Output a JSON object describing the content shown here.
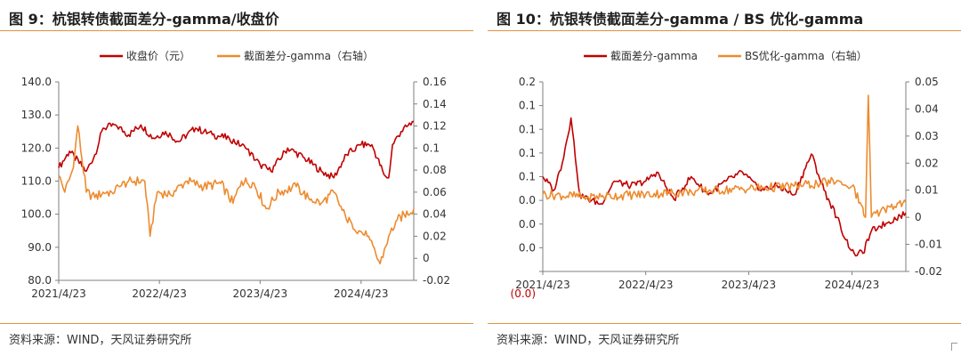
{
  "colors": {
    "series_red": "#c00000",
    "series_orange": "#ed8b2f",
    "rule": "#e0933b",
    "axis": "#7f7f7f"
  },
  "left": {
    "title": "图 9：杭银转债截面差分-gamma/收盘价",
    "source": "资料来源：WIND，天风证券研究所"
  },
  "right": {
    "title": "图 10：杭银转债截面差分-gamma / BS 优化-gamma",
    "source": "资料来源：WIND，天风证券研究所"
  },
  "chart_data": [
    {
      "type": "line",
      "title": "图 9：杭银转债截面差分-gamma/收盘价",
      "x_ticks": [
        "2021/4/23",
        "2022/4/23",
        "2023/4/23",
        "2024/4/23"
      ],
      "x_range": [
        "2021/4/23",
        "2024/10/31"
      ],
      "y_left": {
        "ticks": [
          "80.0",
          "90.0",
          "100.0",
          "110.0",
          "120.0",
          "130.0",
          "140.0"
        ],
        "range": [
          80,
          140
        ]
      },
      "y_right": {
        "ticks": [
          "-0.02",
          "0",
          "0.02",
          "0.04",
          "0.06",
          "0.08",
          "0.1",
          "0.12",
          "0.14",
          "0.16"
        ],
        "range": [
          -0.02,
          0.16
        ]
      },
      "legend_position": "top-center",
      "series": [
        {
          "name": "收盘价（元）",
          "axis": "left",
          "color": "#c00000",
          "x": [
            "2021/4/23",
            "2021/6/1",
            "2021/8/1",
            "2021/9/1",
            "2021/10/1",
            "2021/11/15",
            "2022/1/1",
            "2022/2/15",
            "2022/4/1",
            "2022/5/15",
            "2022/7/1",
            "2022/9/1",
            "2022/11/1",
            "2023/1/1",
            "2023/3/1",
            "2023/4/23",
            "2023/6/1",
            "2023/8/1",
            "2023/10/1",
            "2023/12/1",
            "2024/1/15",
            "2024/3/1",
            "2024/4/23",
            "2024/6/1",
            "2024/7/15",
            "2024/8/1",
            "2024/8/15",
            "2024/9/15",
            "2024/10/31"
          ],
          "values": [
            114,
            119,
            113,
            118,
            126,
            127,
            124,
            127,
            123,
            125,
            122,
            126,
            124,
            123,
            120,
            115,
            113,
            120,
            117,
            113,
            111,
            118,
            121,
            121,
            112,
            111,
            121,
            125,
            128
          ]
        },
        {
          "name": "截面差分-gamma（右轴）",
          "axis": "right",
          "color": "#ed8b2f",
          "x": [
            "2021/4/23",
            "2021/5/15",
            "2021/6/15",
            "2021/7/1",
            "2021/8/1",
            "2021/9/1",
            "2021/10/1",
            "2021/11/1",
            "2021/12/1",
            "2022/1/1",
            "2022/3/1",
            "2022/3/20",
            "2022/4/15",
            "2022/6/1",
            "2022/8/1",
            "2022/10/1",
            "2022/12/1",
            "2023/1/15",
            "2023/2/15",
            "2023/4/1",
            "2023/5/15",
            "2023/7/1",
            "2023/9/1",
            "2023/10/15",
            "2023/12/1",
            "2024/1/15",
            "2024/3/1",
            "2024/3/20",
            "2024/4/15",
            "2024/5/15",
            "2024/7/1",
            "2024/8/1",
            "2024/9/1",
            "2024/10/31"
          ],
          "values": [
            0.075,
            0.06,
            0.082,
            0.12,
            0.06,
            0.055,
            0.06,
            0.06,
            0.065,
            0.07,
            0.07,
            0.02,
            0.06,
            0.058,
            0.07,
            0.065,
            0.068,
            0.05,
            0.07,
            0.068,
            0.045,
            0.06,
            0.065,
            0.055,
            0.05,
            0.06,
            0.035,
            0.032,
            0.025,
            0.02,
            -0.005,
            0.02,
            0.035,
            0.045
          ]
        }
      ]
    },
    {
      "type": "line",
      "title": "图 10：杭银转债截面差分-gamma / BS 优化-gamma",
      "x_ticks": [
        "2021/4/23",
        "2022/4/23",
        "2023/4/23",
        "2024/4/23"
      ],
      "x_range": [
        "2021/4/23",
        "2024/10/31"
      ],
      "y_left": {
        "ticks": [
          "(0.0)",
          "0.0",
          "0.0",
          "0.0",
          "0.1",
          "0.1",
          "0.1",
          "0.1",
          "0.2"
        ],
        "range": [
          -0.01,
          0.2
        ]
      },
      "y_right": {
        "ticks": [
          "-0.02",
          "-0.01",
          "0",
          "0.01",
          "0.02",
          "0.03",
          "0.04",
          "0.05"
        ],
        "range": [
          -0.02,
          0.05
        ]
      },
      "legend_position": "top-center",
      "series": [
        {
          "name": "截面差分-gamma",
          "axis": "left",
          "color": "#c00000",
          "x": [
            "2021/4/23",
            "2021/6/1",
            "2021/7/1",
            "2021/8/1",
            "2021/9/1",
            "2021/10/1",
            "2021/11/15",
            "2022/1/1",
            "2022/3/1",
            "2022/4/23",
            "2022/6/1",
            "2022/8/1",
            "2022/10/1",
            "2022/12/1",
            "2023/2/1",
            "2023/4/1",
            "2023/6/1",
            "2023/8/1",
            "2023/10/1",
            "2023/12/1",
            "2024/1/15",
            "2024/3/1",
            "2024/4/1",
            "2024/5/1",
            "2024/6/1",
            "2024/7/1",
            "2024/8/1",
            "2024/9/1",
            "2024/10/31"
          ],
          "values": [
            0.095,
            0.08,
            0.11,
            0.16,
            0.075,
            0.07,
            0.065,
            0.09,
            0.085,
            0.09,
            0.1,
            0.07,
            0.095,
            0.075,
            0.09,
            0.1,
            0.08,
            0.085,
            0.075,
            0.12,
            0.08,
            0.05,
            0.025,
            0.01,
            0.01,
            0.035,
            0.04,
            0.045,
            0.055
          ]
        },
        {
          "name": "BS优化-gamma（右轴）",
          "axis": "right",
          "color": "#ed8b2f",
          "x": [
            "2021/4/23",
            "2021/10/1",
            "2022/4/23",
            "2022/10/1",
            "2023/4/1",
            "2023/10/1",
            "2024/1/1",
            "2024/3/1",
            "2024/3/20",
            "2024/4/1",
            "2024/4/23",
            "2024/6/1",
            "2024/6/5",
            "2024/6/10",
            "2024/6/20",
            "2024/7/1",
            "2024/8/1",
            "2024/9/1",
            "2024/10/31"
          ],
          "values": [
            0.0085,
            0.0075,
            0.0085,
            0.0095,
            0.0105,
            0.0115,
            0.0125,
            0.0135,
            0.012,
            0.0118,
            0.0115,
            0.0035,
            0.0005,
            0.0,
            0.045,
            0.0,
            0.002,
            0.004,
            0.0055
          ]
        }
      ]
    }
  ]
}
